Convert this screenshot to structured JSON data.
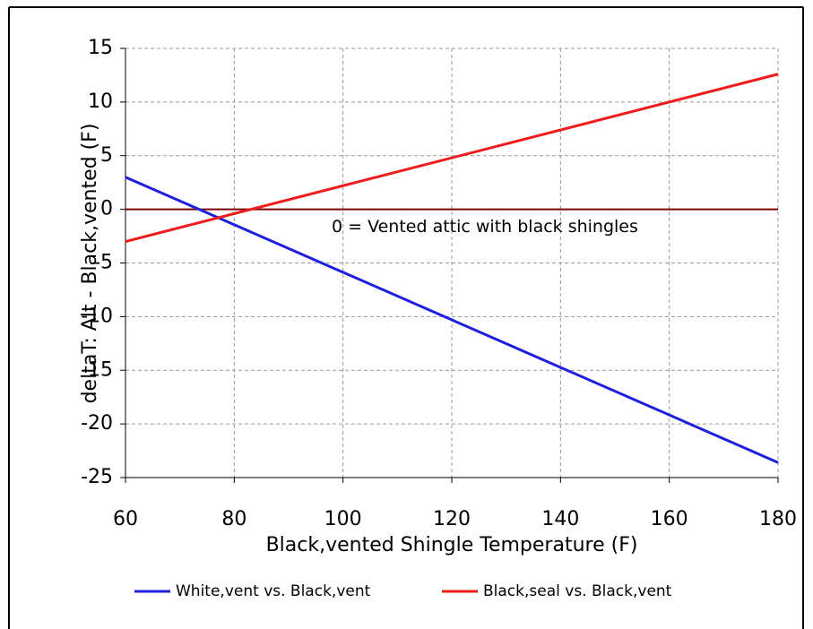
{
  "chart_data": {
    "type": "line",
    "xlabel": "Black,vented Shingle Temperature (F)",
    "ylabel": "deltaT: Alt - Black,vented (F)",
    "x": [
      60,
      180
    ],
    "series": [
      {
        "name": "White,vent vs. Black,vent",
        "color": "#1f1fe0",
        "values": [
          3,
          -23.6
        ]
      },
      {
        "name": "Black,seal vs. Black,vent",
        "color": "#ee1c1c",
        "values": [
          -3,
          12.6
        ]
      }
    ],
    "reference_line": 0,
    "reference_color": "#7a0000",
    "annotation": "0 = Vented attic with black shingles",
    "xlim": [
      60,
      180
    ],
    "xticks": [
      60,
      80,
      100,
      120,
      140,
      160,
      180
    ],
    "ylim": [
      -25,
      15
    ],
    "yticks": [
      -25,
      -20,
      -15,
      -10,
      -5,
      0,
      5,
      10,
      15
    ],
    "grid": true,
    "legend": "bottom"
  }
}
